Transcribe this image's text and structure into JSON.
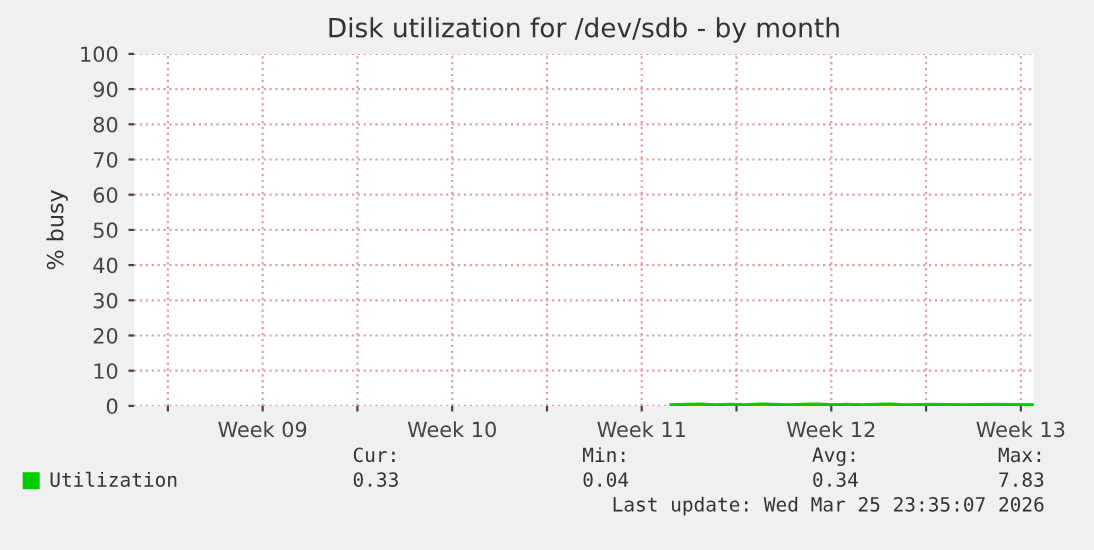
{
  "chart_data": {
    "type": "line",
    "title": "Disk utilization for /dev/sdb - by month",
    "ylabel": "% busy",
    "xlim": [
      "2026-02-21T18:00",
      "2026-03-26T23:30"
    ],
    "ylim": [
      0,
      100
    ],
    "xticks": [
      {
        "value": "2026-02-23",
        "label": null
      },
      {
        "value": "2026-02-26T12:00",
        "label": "Week 09"
      },
      {
        "value": "2026-03-02",
        "label": null
      },
      {
        "value": "2026-03-05T12:00",
        "label": "Week 10"
      },
      {
        "value": "2026-03-09",
        "label": null
      },
      {
        "value": "2026-03-12T12:00",
        "label": "Week 11"
      },
      {
        "value": "2026-03-16",
        "label": null
      },
      {
        "value": "2026-03-19T12:00",
        "label": "Week 12"
      },
      {
        "value": "2026-03-23",
        "label": null
      },
      {
        "value": "2026-03-26T12:00",
        "label": "Week 13"
      }
    ],
    "yticks": [
      0,
      10,
      20,
      30,
      40,
      50,
      60,
      70,
      80,
      90,
      100
    ],
    "grid": true,
    "legend": "bottom",
    "series": [
      {
        "name": "Utilization",
        "color": "#00cc00",
        "x": [
          "2026-03-13T14:00",
          "2026-03-14T03:00",
          "2026-03-14T16:00",
          "2026-03-15T05:00",
          "2026-03-15T18:00",
          "2026-03-16T07:00",
          "2026-03-16T20:00",
          "2026-03-17T09:00",
          "2026-03-17T22:00",
          "2026-03-18T11:00",
          "2026-03-19T00:00",
          "2026-03-19T13:00",
          "2026-03-20T02:00",
          "2026-03-20T15:00",
          "2026-03-21T04:00",
          "2026-03-21T17:00",
          "2026-03-22T06:00",
          "2026-03-23T08:00",
          "2026-03-24T10:00",
          "2026-03-25T12:00",
          "2026-03-26T23:00"
        ],
        "values": [
          0.3,
          0.4,
          0.5,
          0.3,
          0.4,
          0.3,
          0.5,
          0.4,
          0.3,
          0.4,
          0.5,
          0.3,
          0.4,
          0.3,
          0.4,
          0.5,
          0.3,
          0.4,
          0.3,
          0.4,
          0.3
        ]
      }
    ],
    "annotations": [
      "Cur:",
      "Min:",
      "Avg:",
      "Max:",
      "0.33",
      "0.04",
      "0.34",
      "7.83",
      "Last update: Wed Mar 25 23:35:07 2026"
    ]
  }
}
